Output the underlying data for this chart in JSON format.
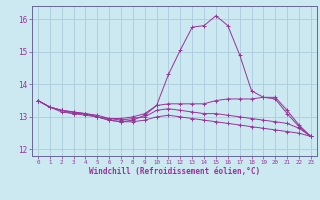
{
  "xlabel": "Windchill (Refroidissement éolien,°C)",
  "background_color": "#cce8f0",
  "grid_color": "#aaccdd",
  "line_color": "#993399",
  "spine_color": "#666699",
  "xlim": [
    -0.5,
    23.5
  ],
  "ylim": [
    11.8,
    16.4
  ],
  "yticks": [
    12,
    13,
    14,
    15,
    16
  ],
  "xticks": [
    0,
    1,
    2,
    3,
    4,
    5,
    6,
    7,
    8,
    9,
    10,
    11,
    12,
    13,
    14,
    15,
    16,
    17,
    18,
    19,
    20,
    21,
    22,
    23
  ],
  "series": [
    [
      13.5,
      13.3,
      13.2,
      13.1,
      13.1,
      13.0,
      12.9,
      12.85,
      12.9,
      13.05,
      13.35,
      14.3,
      15.05,
      15.75,
      15.8,
      16.1,
      15.8,
      14.9,
      13.8,
      13.6,
      13.55,
      13.1,
      12.7,
      12.4
    ],
    [
      13.5,
      13.3,
      13.2,
      13.15,
      13.1,
      13.05,
      12.95,
      12.95,
      13.0,
      13.1,
      13.35,
      13.4,
      13.4,
      13.4,
      13.4,
      13.5,
      13.55,
      13.55,
      13.55,
      13.6,
      13.6,
      13.2,
      12.75,
      12.4
    ],
    [
      13.5,
      13.3,
      13.2,
      13.15,
      13.1,
      13.0,
      12.95,
      12.9,
      12.95,
      13.0,
      13.2,
      13.25,
      13.2,
      13.15,
      13.1,
      13.1,
      13.05,
      13.0,
      12.95,
      12.9,
      12.85,
      12.8,
      12.65,
      12.4
    ],
    [
      13.5,
      13.3,
      13.15,
      13.1,
      13.05,
      13.0,
      12.9,
      12.85,
      12.85,
      12.9,
      13.0,
      13.05,
      13.0,
      12.95,
      12.9,
      12.85,
      12.8,
      12.75,
      12.7,
      12.65,
      12.6,
      12.55,
      12.5,
      12.4
    ]
  ]
}
